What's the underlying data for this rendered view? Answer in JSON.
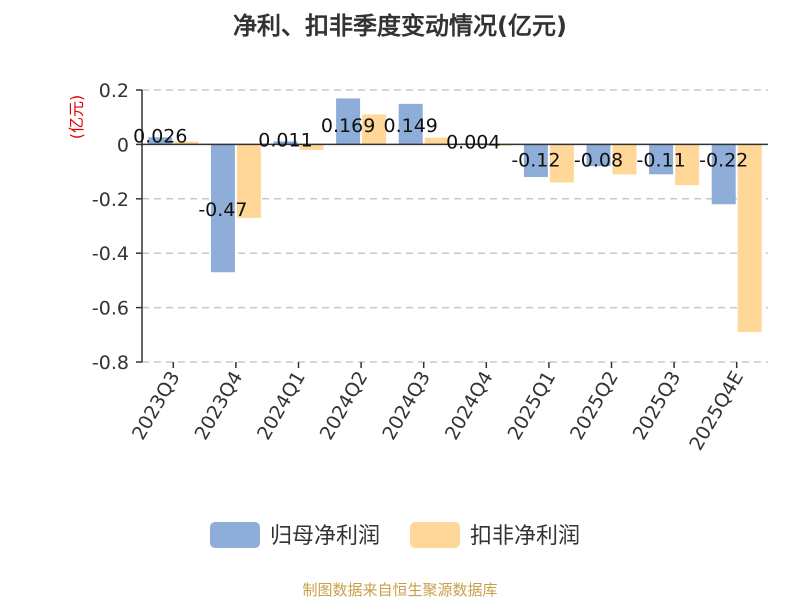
{
  "chart_data": {
    "type": "bar",
    "title": "净利、扣非季度变动情况(亿元)",
    "unit_label": "(亿元)",
    "categories": [
      "2023Q3",
      "2023Q4",
      "2024Q1",
      "2024Q2",
      "2024Q3",
      "2024Q4",
      "2025Q1",
      "2025Q2",
      "2025Q3",
      "2025Q4E"
    ],
    "series": [
      {
        "name": "归母净利润",
        "color": "#8eadd9",
        "values": [
          0.026,
          -0.47,
          0.011,
          0.169,
          0.149,
          0.004,
          -0.12,
          -0.08,
          -0.11,
          -0.22
        ],
        "labels": [
          "0.026",
          "-0.47",
          "0.011",
          "0.169",
          "0.149",
          "0.004",
          "-0.12",
          "-0.08",
          "-0.11",
          "-0.22"
        ]
      },
      {
        "name": "扣非净利润",
        "color": "#fed799",
        "values": [
          0.01,
          -0.27,
          -0.02,
          0.11,
          0.025,
          -0.005,
          -0.14,
          -0.11,
          -0.15,
          -0.69
        ]
      }
    ],
    "ylim": [
      -0.8,
      0.2
    ],
    "yticks": [
      0.2,
      0,
      -0.2,
      -0.4,
      -0.6,
      -0.8
    ],
    "ytick_labels": [
      "0.2",
      "0",
      "-0.2",
      "-0.4",
      "-0.6",
      "-0.8"
    ],
    "grid": true,
    "legend_position": "bottom"
  },
  "source_text": "制图数据来自恒生聚源数据库"
}
